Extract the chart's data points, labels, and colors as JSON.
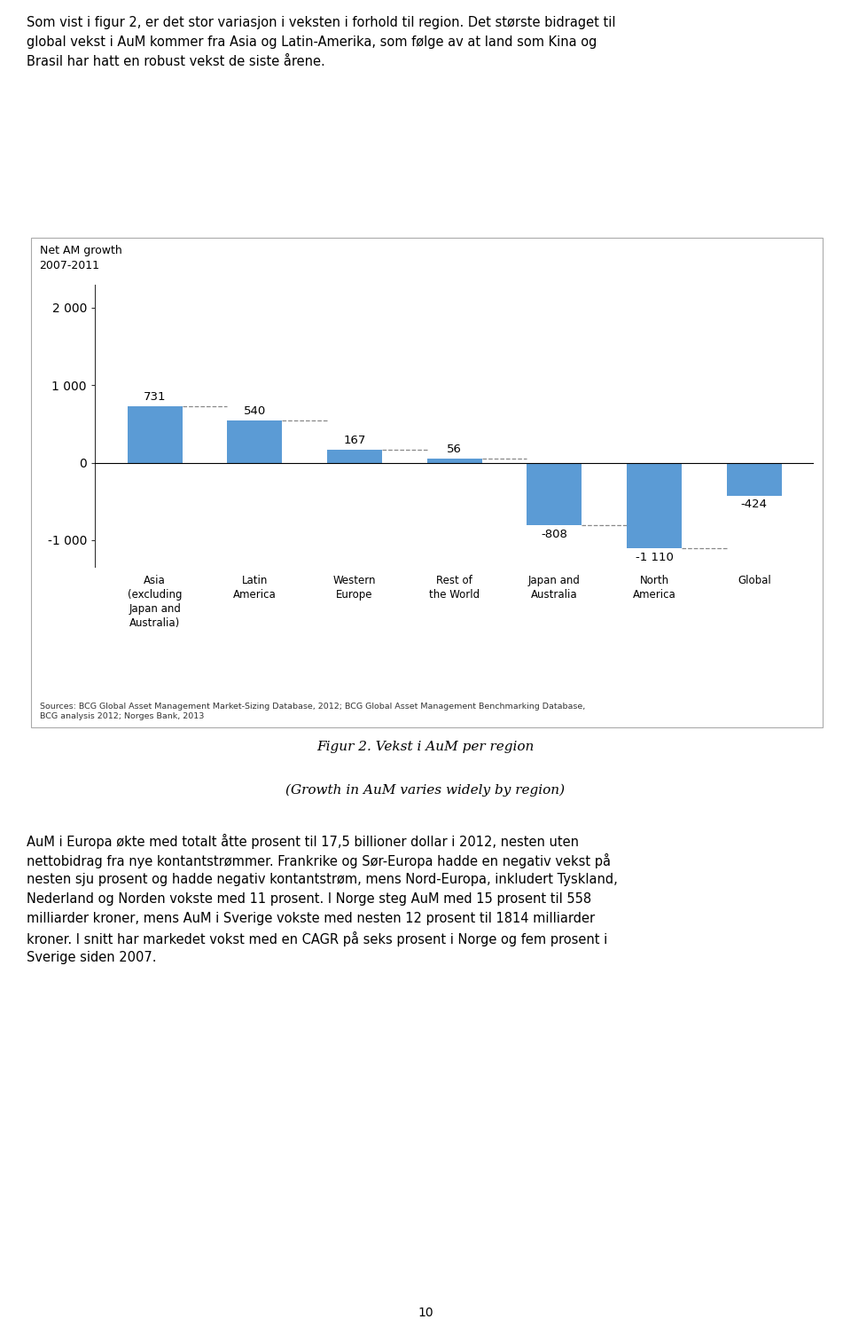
{
  "title_line1": "Net AM growth",
  "title_line2": "2007-2011",
  "categories": [
    "Asia\n(excluding\nJapan and\nAustralia)",
    "Latin\nAmerica",
    "Western\nEurope",
    "Rest of\nthe World",
    "Japan and\nAustralia",
    "North\nAmerica",
    "Global"
  ],
  "values": [
    731,
    540,
    167,
    56,
    -808,
    -1110,
    -424
  ],
  "bar_color": "#5B9BD5",
  "bar_width": 0.55,
  "ylim": [
    -1350,
    2300
  ],
  "yticks": [
    -1000,
    0,
    1000,
    2000
  ],
  "ytick_labels": [
    "-1 000",
    "0",
    "1 000",
    "2 000"
  ],
  "value_labels": [
    "731",
    "540",
    "167",
    "56",
    "-808",
    "-1 110",
    "-424"
  ],
  "source_text": "Sources: BCG Global Asset Management Market-Sizing Database, 2012; BCG Global Asset Management Benchmarking Database,\nBCG analysis 2012; Norges Bank, 2013",
  "figure_caption_line1": "Figur 2. Vekst i AuM per region",
  "figure_caption_line2": "(Growth in AuM varies widely by region)",
  "top_text_line1": "Som vist i figur 2, er det stor variasjon i veksten i forhold til region. Det største bidraget til",
  "top_text_line2": "global vekst i AuM kommer fra Asia og Latin-Amerika, som følge av at land som Kina og",
  "top_text_line3": "Brasil har hatt en robust vekst de siste årene.",
  "bottom_text": "AuM i Europa økte med totalt åtte prosent til 17,5 billioner dollar i 2012, nesten uten\nnettobidrag fra nye kontantstrømmer. Frankrike og Sør-Europa hadde en negativ vekst på\nnesten sju prosent og hadde negativ kontantstrøm, mens Nord-Europa, inkludert Tyskland,\nNederland og Norden vokste med 11 prosent. I Norge steg AuM med 15 prosent til 558\nmilliarder kroner, mens AuM i Sverige vokste med nesten 12 prosent til 1814 milliarder\nkroner. I snitt har markedet vokst med en CAGR på seks prosent i Norge og fem prosent i\nSverige siden 2007.",
  "page_number": "10",
  "background_color": "#FFFFFF",
  "bar_color_hex": "#5B9BD5",
  "dashed_line_color": "#888888",
  "border_color": "#AAAAAA"
}
